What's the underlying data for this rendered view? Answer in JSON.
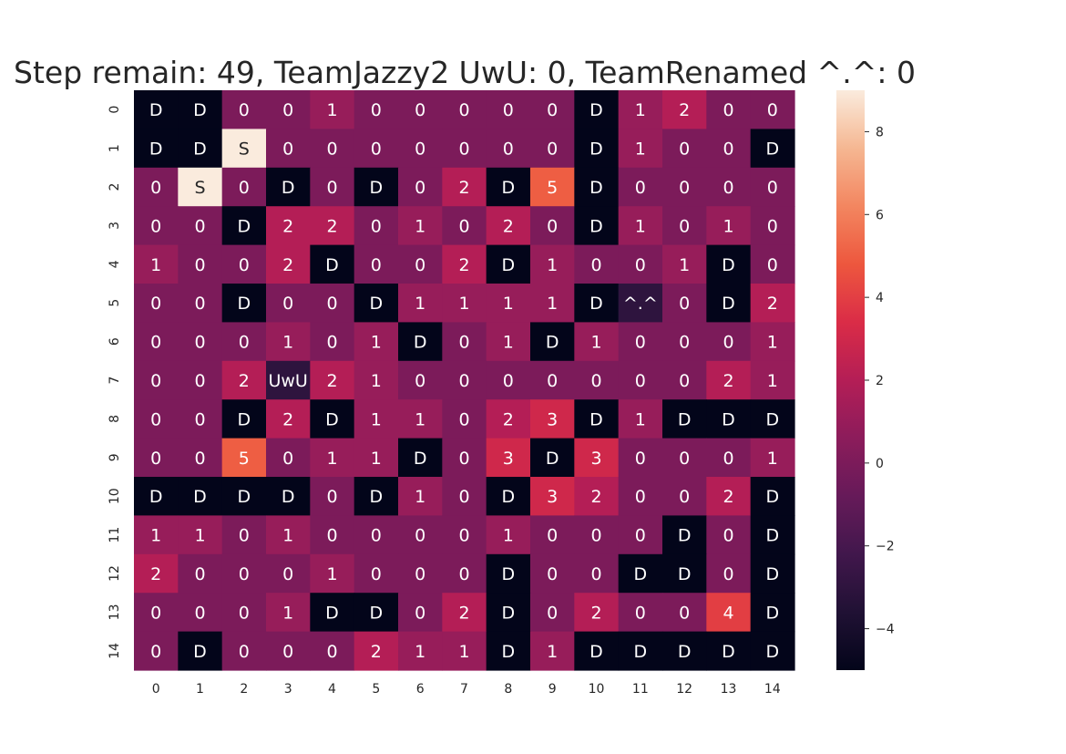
{
  "chart_data": {
    "type": "heatmap",
    "title": "Step remain: 49, TeamJazzy2 UwU: 0, TeamRenamed ^.^: 0",
    "x_ticks": [
      "0",
      "1",
      "2",
      "3",
      "4",
      "5",
      "6",
      "7",
      "8",
      "9",
      "10",
      "11",
      "12",
      "13",
      "14"
    ],
    "y_ticks": [
      "0",
      "1",
      "2",
      "3",
      "4",
      "5",
      "6",
      "7",
      "8",
      "9",
      "10",
      "11",
      "12",
      "13",
      "14"
    ],
    "vmin": -5,
    "vmax": 9,
    "colorbar_ticks": [
      "8",
      "6",
      "4",
      "2",
      "0",
      "−2",
      "−4"
    ],
    "colorbar_tick_values": [
      8,
      6,
      4,
      2,
      0,
      -2,
      -4
    ],
    "colormap": "rocket",
    "values": [
      [
        -5,
        -5,
        0,
        0,
        1,
        0,
        0,
        0,
        0,
        0,
        -5,
        1,
        2,
        0,
        0
      ],
      [
        -5,
        -5,
        9,
        0,
        0,
        0,
        0,
        0,
        0,
        0,
        -5,
        1,
        0,
        0,
        -5
      ],
      [
        0,
        9,
        0,
        -5,
        0,
        -5,
        0,
        2,
        -5,
        5,
        -5,
        0,
        0,
        0,
        0
      ],
      [
        0,
        0,
        -5,
        2,
        2,
        0,
        1,
        0,
        2,
        0,
        -5,
        1,
        0,
        1,
        0
      ],
      [
        1,
        0,
        0,
        2,
        -5,
        0,
        0,
        2,
        -5,
        1,
        0,
        0,
        1,
        -5,
        0
      ],
      [
        0,
        0,
        -5,
        0,
        0,
        -5,
        1,
        1,
        1,
        1,
        -5,
        -3,
        0,
        -5,
        2
      ],
      [
        0,
        0,
        0,
        1,
        0,
        1,
        -5,
        0,
        1,
        -5,
        1,
        0,
        0,
        0,
        1
      ],
      [
        0,
        0,
        2,
        -3,
        2,
        1,
        0,
        0,
        0,
        0,
        0,
        0,
        0,
        2,
        1
      ],
      [
        0,
        0,
        -5,
        2,
        -5,
        1,
        1,
        0,
        2,
        3,
        -5,
        1,
        -5,
        -5,
        -5
      ],
      [
        0,
        0,
        5,
        0,
        1,
        1,
        -5,
        0,
        3,
        -5,
        3,
        0,
        0,
        0,
        1
      ],
      [
        -5,
        -5,
        -5,
        -5,
        0,
        -5,
        1,
        0,
        -5,
        3,
        2,
        0,
        0,
        2,
        -5
      ],
      [
        1,
        1,
        0,
        1,
        0,
        0,
        0,
        0,
        1,
        0,
        0,
        0,
        -5,
        0,
        -5
      ],
      [
        2,
        0,
        0,
        0,
        1,
        0,
        0,
        0,
        -5,
        0,
        0,
        -5,
        -5,
        0,
        -5
      ],
      [
        0,
        0,
        0,
        1,
        -5,
        -5,
        0,
        2,
        -5,
        0,
        2,
        0,
        0,
        4,
        -5
      ],
      [
        0,
        -5,
        0,
        0,
        0,
        2,
        1,
        1,
        -5,
        1,
        -5,
        -5,
        -5,
        -5,
        -5
      ]
    ],
    "annotations": [
      [
        "D",
        "D",
        "0",
        "0",
        "1",
        "0",
        "0",
        "0",
        "0",
        "0",
        "D",
        "1",
        "2",
        "0",
        "0"
      ],
      [
        "D",
        "D",
        "S",
        "0",
        "0",
        "0",
        "0",
        "0",
        "0",
        "0",
        "D",
        "1",
        "0",
        "0",
        "D"
      ],
      [
        "0",
        "S",
        "0",
        "D",
        "0",
        "D",
        "0",
        "2",
        "D",
        "5",
        "D",
        "0",
        "0",
        "0",
        "0"
      ],
      [
        "0",
        "0",
        "D",
        "2",
        "2",
        "0",
        "1",
        "0",
        "2",
        "0",
        "D",
        "1",
        "0",
        "1",
        "0"
      ],
      [
        "1",
        "0",
        "0",
        "2",
        "D",
        "0",
        "0",
        "2",
        "D",
        "1",
        "0",
        "0",
        "1",
        "D",
        "0"
      ],
      [
        "0",
        "0",
        "D",
        "0",
        "0",
        "D",
        "1",
        "1",
        "1",
        "1",
        "D",
        "^.^",
        "0",
        "D",
        "2"
      ],
      [
        "0",
        "0",
        "0",
        "1",
        "0",
        "1",
        "D",
        "0",
        "1",
        "D",
        "1",
        "0",
        "0",
        "0",
        "1"
      ],
      [
        "0",
        "0",
        "2",
        "UwU",
        "2",
        "1",
        "0",
        "0",
        "0",
        "0",
        "0",
        "0",
        "0",
        "2",
        "1"
      ],
      [
        "0",
        "0",
        "D",
        "2",
        "D",
        "1",
        "1",
        "0",
        "2",
        "3",
        "D",
        "1",
        "D",
        "D",
        "D"
      ],
      [
        "0",
        "0",
        "5",
        "0",
        "1",
        "1",
        "D",
        "0",
        "3",
        "D",
        "3",
        "0",
        "0",
        "0",
        "1"
      ],
      [
        "D",
        "D",
        "D",
        "D",
        "0",
        "D",
        "1",
        "0",
        "D",
        "3",
        "2",
        "0",
        "0",
        "2",
        "D"
      ],
      [
        "1",
        "1",
        "0",
        "1",
        "0",
        "0",
        "0",
        "0",
        "1",
        "0",
        "0",
        "0",
        "D",
        "0",
        "D"
      ],
      [
        "2",
        "0",
        "0",
        "0",
        "1",
        "0",
        "0",
        "0",
        "D",
        "0",
        "0",
        "D",
        "D",
        "0",
        "D"
      ],
      [
        "0",
        "0",
        "0",
        "1",
        "D",
        "D",
        "0",
        "2",
        "D",
        "0",
        "2",
        "0",
        "0",
        "4",
        "D"
      ],
      [
        "0",
        "D",
        "0",
        "0",
        "0",
        "2",
        "1",
        "1",
        "D",
        "1",
        "D",
        "D",
        "D",
        "D",
        "D"
      ]
    ]
  }
}
